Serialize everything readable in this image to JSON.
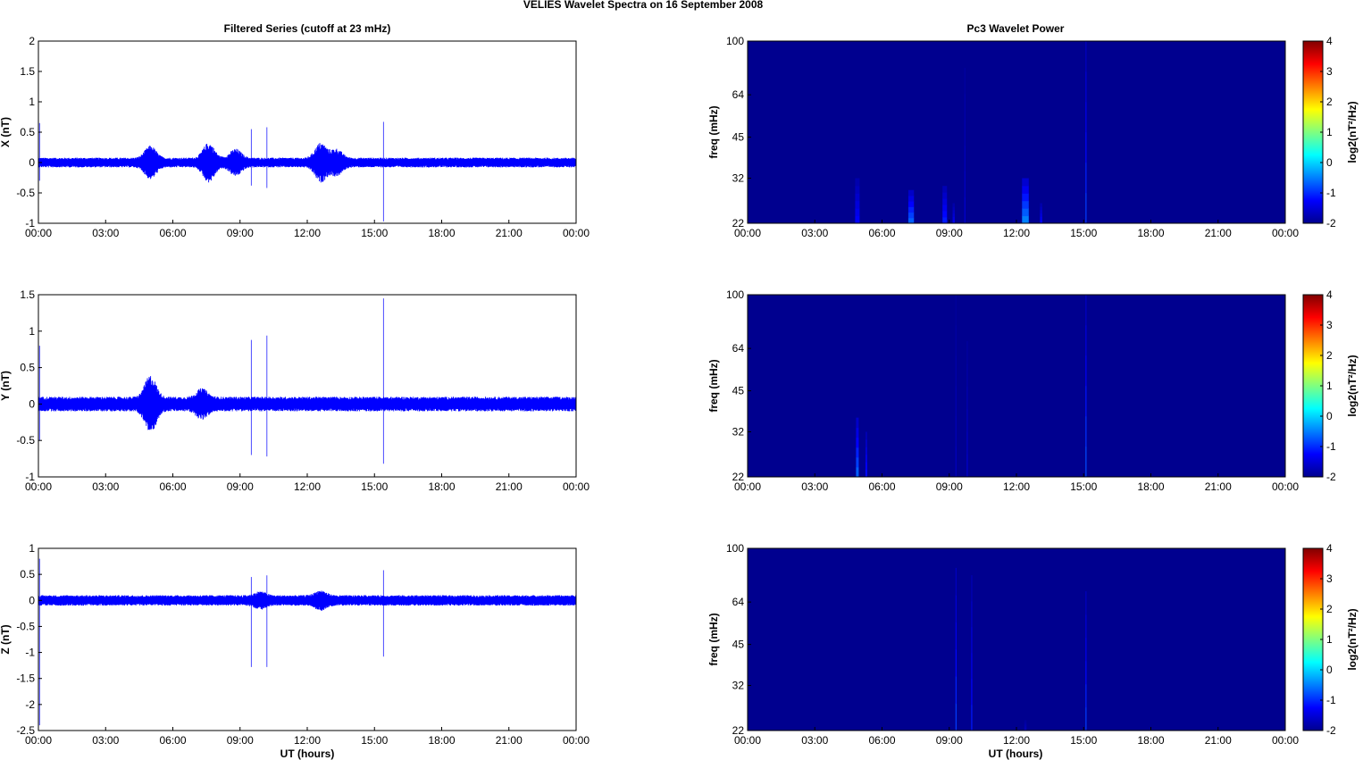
{
  "figure": {
    "title": "VELIES Wavelet Spectra on 16 September 2008",
    "left_column_title": "Filtered Series (cutoff at 23 mHz)",
    "right_column_title": "Pc3 Wavelet Power",
    "xlabel": "UT (hours)",
    "x_tick_labels": [
      "00:00",
      "03:00",
      "06:00",
      "09:00",
      "12:00",
      "15:00",
      "18:00",
      "21:00",
      "00:00"
    ],
    "colors": {
      "trace": "#0000ff",
      "background_power": "#00008f"
    }
  },
  "chart_data": [
    {
      "type": "line",
      "component": "X",
      "ylabel": "X (nT)",
      "xlim_hours": [
        0,
        24
      ],
      "ylim": [
        -1,
        2
      ],
      "y_ticks": [
        -1,
        -0.5,
        0,
        0.5,
        1,
        1.5,
        2
      ],
      "noise_amplitude": 0.08,
      "bursts": [
        {
          "center_hour": 5.0,
          "amplitude": 0.2
        },
        {
          "center_hour": 7.6,
          "amplitude": 0.25
        },
        {
          "center_hour": 8.8,
          "amplitude": 0.15
        },
        {
          "center_hour": 12.6,
          "amplitude": 0.25
        },
        {
          "center_hour": 13.3,
          "amplitude": 0.15
        }
      ],
      "spikes": [
        {
          "hour": 0.05,
          "max": 0.65,
          "min": -0.3
        },
        {
          "hour": 9.5,
          "max": 0.55,
          "min": -0.38
        },
        {
          "hour": 10.2,
          "max": 0.58,
          "min": -0.42
        },
        {
          "hour": 15.4,
          "max": 0.67,
          "min": -0.97
        }
      ]
    },
    {
      "type": "line",
      "component": "Y",
      "ylabel": "Y (nT)",
      "xlim_hours": [
        0,
        24
      ],
      "ylim": [
        -1,
        1.5
      ],
      "y_ticks": [
        -1,
        -0.5,
        0,
        0.5,
        1,
        1.5
      ],
      "noise_amplitude": 0.1,
      "bursts": [
        {
          "center_hour": 5.0,
          "amplitude": 0.3
        },
        {
          "center_hour": 7.3,
          "amplitude": 0.12
        }
      ],
      "spikes": [
        {
          "hour": 0.05,
          "max": 0.8,
          "min": -0.5
        },
        {
          "hour": 9.5,
          "max": 0.88,
          "min": -0.7
        },
        {
          "hour": 10.2,
          "max": 0.94,
          "min": -0.72
        },
        {
          "hour": 15.4,
          "max": 1.45,
          "min": -0.82
        }
      ]
    },
    {
      "type": "line",
      "component": "Z",
      "ylabel": "Z (nT)",
      "xlim_hours": [
        0,
        24
      ],
      "ylim": [
        -2.5,
        1
      ],
      "y_ticks": [
        -2.5,
        -2,
        -1.5,
        -1,
        -0.5,
        0,
        0.5,
        1
      ],
      "noise_amplitude": 0.1,
      "bursts": [
        {
          "center_hour": 12.6,
          "amplitude": 0.1
        },
        {
          "center_hour": 9.9,
          "amplitude": 0.08
        }
      ],
      "spikes": [
        {
          "hour": 0.05,
          "max": 0.8,
          "min": -2.4
        },
        {
          "hour": 9.5,
          "max": 0.45,
          "min": -1.28
        },
        {
          "hour": 10.2,
          "max": 0.48,
          "min": -1.28
        },
        {
          "hour": 15.4,
          "max": 0.58,
          "min": -1.08
        }
      ]
    },
    {
      "type": "heatmap",
      "component": "X",
      "ylabel": "freq (mHz)",
      "y_scale": "log",
      "ylim_mHz": [
        22,
        100
      ],
      "y_tick_labels": [
        22,
        32,
        45,
        64,
        100
      ],
      "colorbar": {
        "label": "log2(nT²/Hz)",
        "range": [
          -2,
          4
        ],
        "ticks": [
          -2,
          -1,
          0,
          1,
          2,
          3,
          4
        ],
        "colormap": "jet"
      },
      "background_value": -2,
      "features": [
        {
          "hour": 4.9,
          "f_top": 32,
          "value": -1.3,
          "width_hour": 0.2
        },
        {
          "hour": 7.3,
          "f_top": 29,
          "value": -0.7,
          "width_hour": 0.25
        },
        {
          "hour": 8.8,
          "f_top": 30,
          "value": -1.1,
          "width_hour": 0.2
        },
        {
          "hour": 9.2,
          "f_top": 26,
          "value": -1.4,
          "width_hour": 0.1
        },
        {
          "hour": 9.7,
          "f_top": 80,
          "value": -1.6,
          "width_hour": 0.05
        },
        {
          "hour": 12.4,
          "f_top": 32,
          "value": -0.5,
          "width_hour": 0.3
        },
        {
          "hour": 13.1,
          "f_top": 26,
          "value": -1.3,
          "width_hour": 0.1
        },
        {
          "hour": 15.1,
          "f_top": 100,
          "value": -0.9,
          "width_hour": 0.04
        }
      ]
    },
    {
      "type": "heatmap",
      "component": "Y",
      "ylabel": "freq (mHz)",
      "y_scale": "log",
      "ylim_mHz": [
        22,
        100
      ],
      "y_tick_labels": [
        22,
        32,
        45,
        64,
        100
      ],
      "colorbar": {
        "label": "log2(nT²/Hz)",
        "range": [
          -2,
          4
        ],
        "ticks": [
          -2,
          -1,
          0,
          1,
          2,
          3,
          4
        ],
        "colormap": "jet"
      },
      "background_value": -2,
      "features": [
        {
          "hour": 4.9,
          "f_top": 36,
          "value": -0.7,
          "width_hour": 0.12
        },
        {
          "hour": 5.3,
          "f_top": 32,
          "value": -1.2,
          "width_hour": 0.08
        },
        {
          "hour": 9.3,
          "f_top": 100,
          "value": -1.7,
          "width_hour": 0.05
        },
        {
          "hour": 9.8,
          "f_top": 68,
          "value": -1.6,
          "width_hour": 0.04
        },
        {
          "hour": 15.1,
          "f_top": 100,
          "value": -0.8,
          "width_hour": 0.04
        }
      ]
    },
    {
      "type": "heatmap",
      "component": "Z",
      "ylabel": "freq (mHz)",
      "y_scale": "log",
      "ylim_mHz": [
        22,
        100
      ],
      "y_tick_labels": [
        22,
        32,
        45,
        64,
        100
      ],
      "colorbar": {
        "label": "log2(nT²/Hz)",
        "range": [
          -2,
          4
        ],
        "ticks": [
          -2,
          -1,
          0,
          1,
          2,
          3,
          4
        ],
        "colormap": "jet"
      },
      "background_value": -2,
      "features": [
        {
          "hour": 9.3,
          "f_top": 85,
          "value": -0.9,
          "width_hour": 0.04
        },
        {
          "hour": 10.0,
          "f_top": 80,
          "value": -1.1,
          "width_hour": 0.04
        },
        {
          "hour": 12.4,
          "f_top": 24,
          "value": -1.7,
          "width_hour": 0.1
        },
        {
          "hour": 15.1,
          "f_top": 70,
          "value": -0.9,
          "width_hour": 0.04
        }
      ]
    }
  ]
}
